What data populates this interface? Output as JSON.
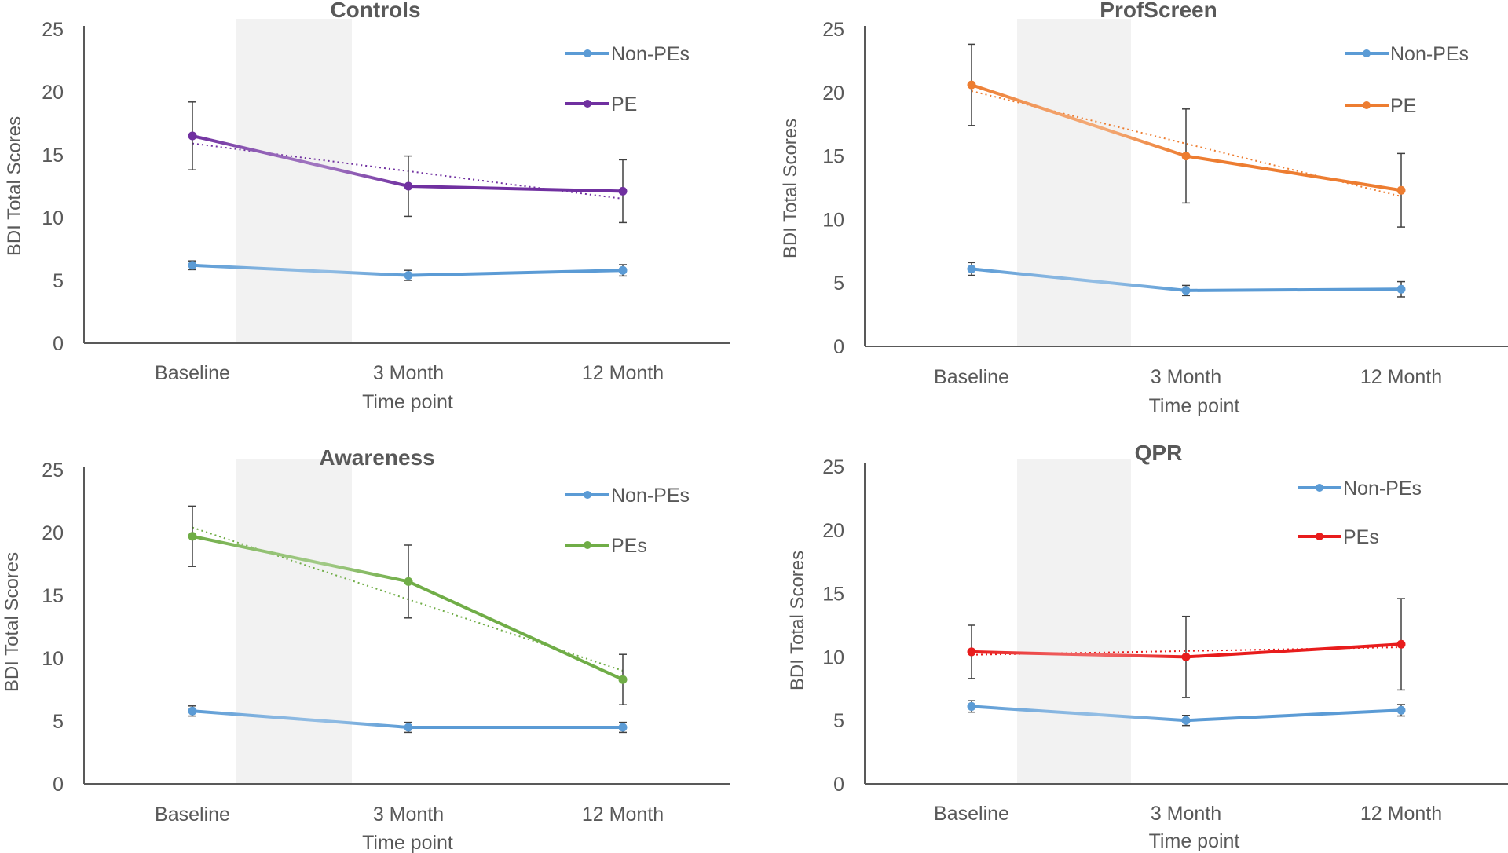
{
  "chart_data": [
    {
      "type": "line",
      "title": "Controls",
      "xlabel": "Time point",
      "ylabel": "BDI Total Scores",
      "ylim": [
        0,
        25
      ],
      "yticks": [
        0,
        5,
        10,
        15,
        20,
        25
      ],
      "categories": [
        "Baseline",
        "3 Month",
        "12 Month"
      ],
      "shaded_interval": [
        "Baseline",
        "3 Month"
      ],
      "legend_position": "top-right",
      "series": [
        {
          "name": "Non-PEs",
          "color": "#5b9bd5",
          "values": [
            6.2,
            5.4,
            5.8
          ],
          "error": [
            0.35,
            0.4,
            0.45
          ],
          "trendline": false
        },
        {
          "name": "PE",
          "color": "#7030a0",
          "values": [
            16.5,
            12.5,
            12.1
          ],
          "error": [
            2.7,
            2.4,
            2.5
          ],
          "trendline": true
        }
      ]
    },
    {
      "type": "line",
      "title": "ProfScreen",
      "xlabel": "Time point",
      "ylabel": "BDI Total Scores",
      "ylim": [
        0,
        25
      ],
      "yticks": [
        0,
        5,
        10,
        15,
        20,
        25
      ],
      "categories": [
        "Baseline",
        "3 Month",
        "12 Month"
      ],
      "shaded_interval": [
        "Baseline",
        "3 Month"
      ],
      "legend_position": "top-right",
      "series": [
        {
          "name": "Non-PEs",
          "color": "#5b9bd5",
          "values": [
            6.1,
            4.4,
            4.5
          ],
          "error": [
            0.5,
            0.4,
            0.6
          ],
          "trendline": false
        },
        {
          "name": "PE",
          "color": "#ed7d31",
          "values": [
            20.6,
            15.0,
            12.3
          ],
          "error": [
            3.2,
            3.7,
            2.9
          ],
          "trendline": true
        }
      ]
    },
    {
      "type": "line",
      "title": "Awareness",
      "xlabel": "Time point",
      "ylabel": "BDI Total Scores",
      "ylim": [
        0,
        25
      ],
      "yticks": [
        0,
        5,
        10,
        15,
        20,
        25
      ],
      "categories": [
        "Baseline",
        "3 Month",
        "12 Month"
      ],
      "shaded_interval": [
        "Baseline",
        "3 Month"
      ],
      "legend_position": "top-right",
      "series": [
        {
          "name": "Non-PEs",
          "color": "#5b9bd5",
          "values": [
            5.8,
            4.5,
            4.5
          ],
          "error": [
            0.4,
            0.4,
            0.4
          ],
          "trendline": false
        },
        {
          "name": "PEs",
          "color": "#70ad47",
          "values": [
            19.7,
            16.1,
            8.3
          ],
          "error": [
            2.4,
            2.9,
            2.0
          ],
          "trendline": true
        }
      ]
    },
    {
      "type": "line",
      "title": "QPR",
      "xlabel": "Time point",
      "ylabel": "BDI Total Scores",
      "ylim": [
        0,
        25
      ],
      "yticks": [
        0,
        5,
        10,
        15,
        20,
        25
      ],
      "categories": [
        "Baseline",
        "3 Month",
        "12 Month"
      ],
      "shaded_interval": [
        "Baseline",
        "3 Month"
      ],
      "legend_position": "top-right",
      "series": [
        {
          "name": "Non-PEs",
          "color": "#5b9bd5",
          "values": [
            6.1,
            5.0,
            5.8
          ],
          "error": [
            0.45,
            0.4,
            0.45
          ],
          "trendline": false
        },
        {
          "name": "PEs",
          "color": "#e81c1c",
          "values": [
            10.4,
            10.0,
            11.0
          ],
          "error": [
            2.1,
            3.2,
            3.6
          ],
          "trendline": true
        }
      ]
    }
  ]
}
